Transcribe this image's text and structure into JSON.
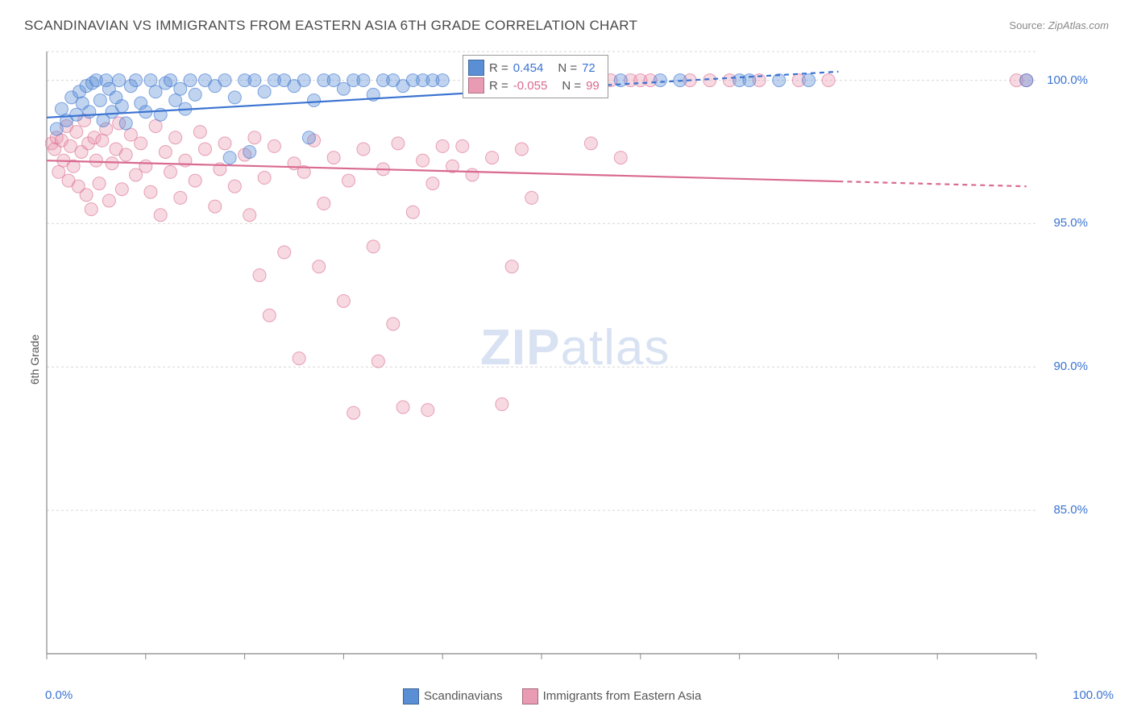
{
  "title": "SCANDINAVIAN VS IMMIGRANTS FROM EASTERN ASIA 6TH GRADE CORRELATION CHART",
  "source_label": "Source:",
  "source_value": "ZipAtlas.com",
  "ylabel": "6th Grade",
  "watermark_zip": "ZIP",
  "watermark_atlas": "atlas",
  "chart": {
    "type": "scatter",
    "background_color": "#ffffff",
    "grid_color": "#d7d7d7",
    "axis_color": "#888888",
    "xlim": [
      0,
      100
    ],
    "ylim": [
      80,
      101
    ],
    "xtick_positions": [
      0,
      10,
      20,
      30,
      40,
      50,
      60,
      70,
      80,
      90,
      100
    ],
    "ytick_positions": [
      85,
      90,
      95,
      100
    ],
    "ytick_labels": [
      "85.0%",
      "90.0%",
      "95.0%",
      "100.0%"
    ],
    "x_start_label": "0.0%",
    "x_end_label": "100.0%",
    "x_label_color": "#3b73d1",
    "marker_radius": 8,
    "marker_opacity": 0.38,
    "line_width": 2.2
  },
  "series": [
    {
      "name": "Scandinavians",
      "color": "#5a8fd6",
      "stroke": "#3b73d1",
      "R": "0.454",
      "N": "72",
      "regression": {
        "x1": 0,
        "y1": 98.7,
        "x2": 80,
        "y2": 100.3,
        "dash_after": 45
      },
      "points": [
        [
          1,
          98.3
        ],
        [
          1.5,
          99.0
        ],
        [
          2,
          98.6
        ],
        [
          2.5,
          99.4
        ],
        [
          3,
          98.8
        ],
        [
          3.3,
          99.6
        ],
        [
          3.6,
          99.2
        ],
        [
          4,
          99.8
        ],
        [
          4.3,
          98.9
        ],
        [
          4.6,
          99.9
        ],
        [
          5,
          100.0
        ],
        [
          5.4,
          99.3
        ],
        [
          5.7,
          98.6
        ],
        [
          6,
          100.0
        ],
        [
          6.3,
          99.7
        ],
        [
          6.6,
          98.9
        ],
        [
          7,
          99.4
        ],
        [
          7.3,
          100.0
        ],
        [
          7.6,
          99.1
        ],
        [
          8,
          98.5
        ],
        [
          8.5,
          99.8
        ],
        [
          9,
          100.0
        ],
        [
          9.5,
          99.2
        ],
        [
          10,
          98.9
        ],
        [
          10.5,
          100.0
        ],
        [
          11,
          99.6
        ],
        [
          11.5,
          98.8
        ],
        [
          12,
          99.9
        ],
        [
          12.5,
          100.0
        ],
        [
          13,
          99.3
        ],
        [
          13.5,
          99.7
        ],
        [
          14,
          99.0
        ],
        [
          14.5,
          100.0
        ],
        [
          15,
          99.5
        ],
        [
          16,
          100.0
        ],
        [
          17,
          99.8
        ],
        [
          18,
          100.0
        ],
        [
          18.5,
          97.3
        ],
        [
          19,
          99.4
        ],
        [
          20,
          100.0
        ],
        [
          20.5,
          97.5
        ],
        [
          21,
          100.0
        ],
        [
          22,
          99.6
        ],
        [
          23,
          100.0
        ],
        [
          24,
          100.0
        ],
        [
          25,
          99.8
        ],
        [
          26,
          100.0
        ],
        [
          26.5,
          98.0
        ],
        [
          27,
          99.3
        ],
        [
          28,
          100.0
        ],
        [
          29,
          100.0
        ],
        [
          30,
          99.7
        ],
        [
          31,
          100.0
        ],
        [
          32,
          100.0
        ],
        [
          33,
          99.5
        ],
        [
          34,
          100.0
        ],
        [
          35,
          100.0
        ],
        [
          36,
          99.8
        ],
        [
          37,
          100.0
        ],
        [
          38,
          100.0
        ],
        [
          39,
          100.0
        ],
        [
          40,
          100.0
        ],
        [
          44,
          100.0
        ],
        [
          55,
          100.0
        ],
        [
          58,
          100.0
        ],
        [
          62,
          100.0
        ],
        [
          64,
          100.0
        ],
        [
          70,
          100.0
        ],
        [
          71,
          100.0
        ],
        [
          74,
          100.0
        ],
        [
          77,
          100.0
        ],
        [
          99,
          100.0
        ]
      ]
    },
    {
      "name": "Immigrants from Eastern Asia",
      "color": "#e99bb4",
      "stroke": "#d96a90",
      "R": "-0.055",
      "N": "99",
      "regression": {
        "x1": 0,
        "y1": 97.2,
        "x2": 99,
        "y2": 96.3,
        "dash_after": 80
      },
      "points": [
        [
          0.5,
          97.8
        ],
        [
          0.8,
          97.6
        ],
        [
          1,
          98.0
        ],
        [
          1.2,
          96.8
        ],
        [
          1.5,
          97.9
        ],
        [
          1.7,
          97.2
        ],
        [
          2,
          98.4
        ],
        [
          2.2,
          96.5
        ],
        [
          2.4,
          97.7
        ],
        [
          2.7,
          97.0
        ],
        [
          3,
          98.2
        ],
        [
          3.2,
          96.3
        ],
        [
          3.5,
          97.5
        ],
        [
          3.8,
          98.6
        ],
        [
          4,
          96.0
        ],
        [
          4.2,
          97.8
        ],
        [
          4.5,
          95.5
        ],
        [
          4.8,
          98.0
        ],
        [
          5,
          97.2
        ],
        [
          5.3,
          96.4
        ],
        [
          5.6,
          97.9
        ],
        [
          6,
          98.3
        ],
        [
          6.3,
          95.8
        ],
        [
          6.6,
          97.1
        ],
        [
          7,
          97.6
        ],
        [
          7.3,
          98.5
        ],
        [
          7.6,
          96.2
        ],
        [
          8,
          97.4
        ],
        [
          8.5,
          98.1
        ],
        [
          9,
          96.7
        ],
        [
          9.5,
          97.8
        ],
        [
          10,
          97.0
        ],
        [
          10.5,
          96.1
        ],
        [
          11,
          98.4
        ],
        [
          11.5,
          95.3
        ],
        [
          12,
          97.5
        ],
        [
          12.5,
          96.8
        ],
        [
          13,
          98.0
        ],
        [
          13.5,
          95.9
        ],
        [
          14,
          97.2
        ],
        [
          15,
          96.5
        ],
        [
          15.5,
          98.2
        ],
        [
          16,
          97.6
        ],
        [
          17,
          95.6
        ],
        [
          17.5,
          96.9
        ],
        [
          18,
          97.8
        ],
        [
          19,
          96.3
        ],
        [
          20,
          97.4
        ],
        [
          20.5,
          95.3
        ],
        [
          21,
          98.0
        ],
        [
          21.5,
          93.2
        ],
        [
          22,
          96.6
        ],
        [
          22.5,
          91.8
        ],
        [
          23,
          97.7
        ],
        [
          24,
          94.0
        ],
        [
          25,
          97.1
        ],
        [
          25.5,
          90.3
        ],
        [
          26,
          96.8
        ],
        [
          27,
          97.9
        ],
        [
          27.5,
          93.5
        ],
        [
          28,
          95.7
        ],
        [
          29,
          97.3
        ],
        [
          30,
          92.3
        ],
        [
          30.5,
          96.5
        ],
        [
          31,
          88.4
        ],
        [
          32,
          97.6
        ],
        [
          33,
          94.2
        ],
        [
          33.5,
          90.2
        ],
        [
          34,
          96.9
        ],
        [
          35,
          91.5
        ],
        [
          35.5,
          97.8
        ],
        [
          36,
          88.6
        ],
        [
          37,
          95.4
        ],
        [
          38,
          97.2
        ],
        [
          38.5,
          88.5
        ],
        [
          39,
          96.4
        ],
        [
          40,
          97.7
        ],
        [
          41,
          97.0
        ],
        [
          42,
          97.7
        ],
        [
          43,
          96.7
        ],
        [
          45,
          97.3
        ],
        [
          46,
          88.7
        ],
        [
          47,
          93.5
        ],
        [
          48,
          97.6
        ],
        [
          49,
          95.9
        ],
        [
          55,
          97.8
        ],
        [
          57,
          100.0
        ],
        [
          58,
          97.3
        ],
        [
          59,
          100.0
        ],
        [
          60,
          100.0
        ],
        [
          61,
          100.0
        ],
        [
          65,
          100.0
        ],
        [
          67,
          100.0
        ],
        [
          69,
          100.0
        ],
        [
          72,
          100.0
        ],
        [
          76,
          100.0
        ],
        [
          79,
          100.0
        ],
        [
          98,
          100.0
        ],
        [
          99,
          100.0
        ]
      ]
    }
  ],
  "legend": {
    "r_label": "R =",
    "n_label": "N ="
  },
  "bottom_legend": {
    "items": [
      "Scandinavians",
      "Immigrants from Eastern Asia"
    ]
  }
}
